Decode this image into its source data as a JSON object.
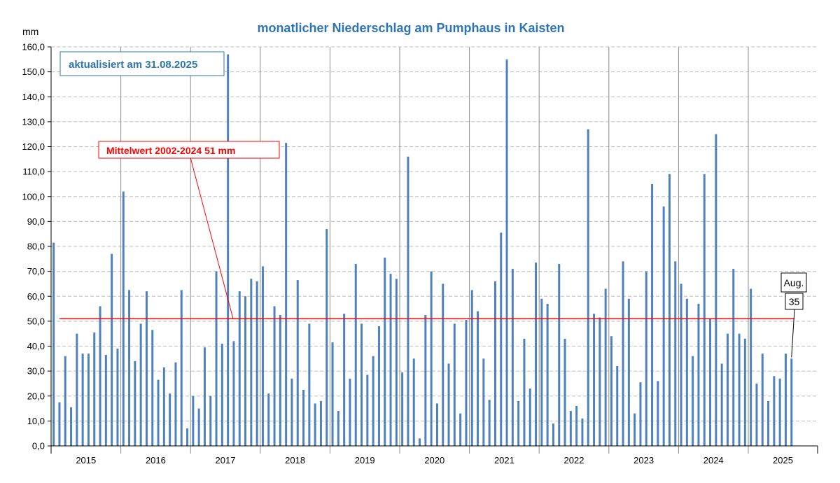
{
  "chart_data": {
    "type": "bar",
    "title": "monatlicher Niederschlag am Pumphaus in Kaisten",
    "ylabel": "mm",
    "ylim": [
      0,
      160
    ],
    "ytick_step": 10,
    "grid": true,
    "colors": {
      "bar": "#4f81bd",
      "mean_line": "#ff0000",
      "title": "#2e75b6",
      "grid": "#bfbfbf",
      "year_divider": "#8c8c8c"
    },
    "years": [
      "2015",
      "2016",
      "2017",
      "2018",
      "2019",
      "2020",
      "2021",
      "2022",
      "2023",
      "2024",
      "2025"
    ],
    "series": [
      {
        "name": "monatlicher Niederschlag",
        "values": [
          81.5,
          17.5,
          36,
          15.5,
          45,
          37,
          37,
          45.5,
          56,
          36.5,
          77,
          39,
          102,
          62.5,
          34,
          49,
          62,
          46.5,
          26.5,
          31.5,
          21,
          33.5,
          62.5,
          7,
          20,
          15,
          39.5,
          20,
          70,
          41,
          157,
          42,
          62,
          60,
          67,
          66,
          72,
          21,
          56,
          52.5,
          121.5,
          27,
          66.5,
          22.5,
          49,
          17,
          18,
          87,
          41.5,
          14,
          53,
          27,
          73,
          49,
          28.5,
          36,
          48,
          75.5,
          69,
          67,
          29.5,
          116,
          35,
          3,
          52.5,
          70,
          17,
          65,
          33,
          49,
          13,
          50.5,
          62.5,
          54,
          35,
          18.5,
          66,
          85.5,
          155,
          71,
          18,
          43,
          23,
          73.5,
          59,
          57,
          9,
          73,
          43,
          14,
          16,
          11,
          127,
          53,
          51.5,
          63,
          44,
          32,
          74,
          59,
          13,
          25.5,
          70,
          105,
          26,
          96,
          109,
          74,
          65,
          59,
          36,
          57,
          109,
          51,
          125,
          33,
          45,
          71,
          45,
          43,
          63,
          25,
          37,
          18,
          28,
          27,
          37,
          35
        ]
      }
    ],
    "mean_line": {
      "value": 51,
      "label": "Mittelwert 2002-2024  51 mm"
    },
    "update_note": "aktualisiert am 31.08.2025",
    "last_point": {
      "month": "Aug.",
      "value": "35"
    }
  }
}
